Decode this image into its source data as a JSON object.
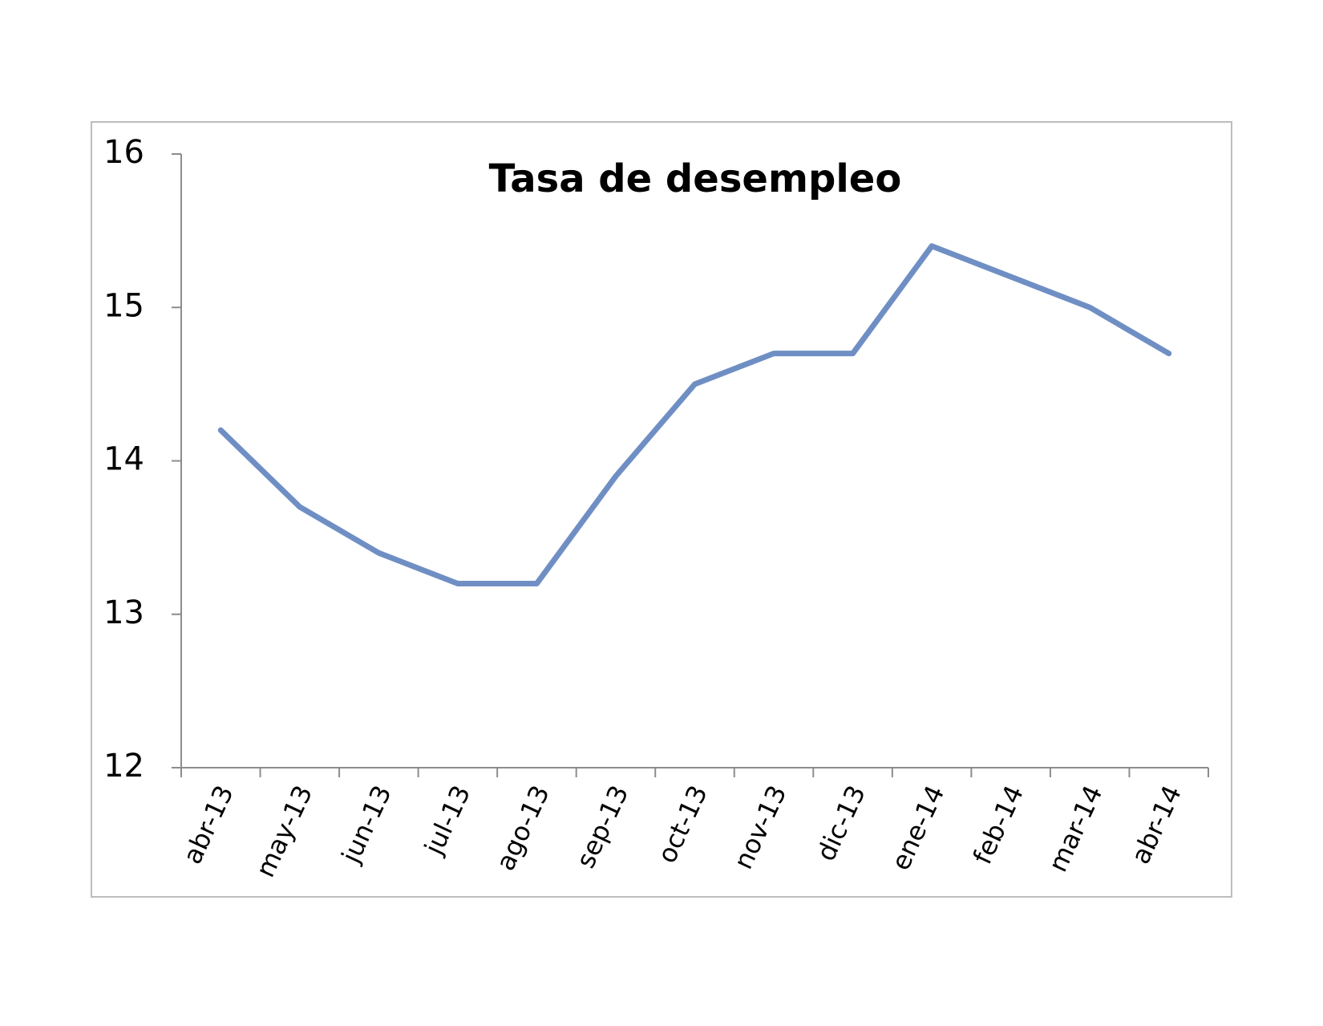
{
  "chart_data": {
    "type": "line",
    "title": "Tasa de desempleo",
    "categories": [
      "abr-13",
      "may-13",
      "jun-13",
      "jul-13",
      "ago-13",
      "sep-13",
      "oct-13",
      "nov-13",
      "dic-13",
      "ene-14",
      "feb-14",
      "mar-14",
      "abr-14"
    ],
    "values": [
      14.2,
      13.7,
      13.4,
      13.2,
      13.2,
      13.9,
      14.5,
      14.7,
      14.7,
      15.4,
      15.2,
      15.0,
      14.7
    ],
    "color": "#6f8fc4",
    "ylim": [
      12,
      16
    ],
    "yticks": [
      12,
      13,
      14,
      15,
      16
    ],
    "grid": false
  }
}
